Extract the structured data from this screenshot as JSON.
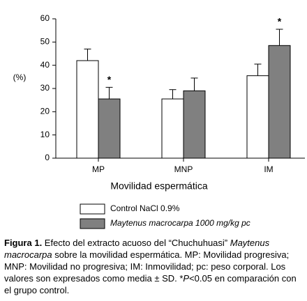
{
  "chart_data": {
    "type": "bar",
    "y_label": "(%)",
    "x_label": "Movilidad espermática",
    "categories": [
      "MP",
      "MNP",
      "IM"
    ],
    "series": [
      {
        "name": "Control NaCl 0.9%",
        "color": "#ffffff",
        "values": [
          42,
          25.5,
          35.5
        ],
        "errors": [
          5,
          4,
          5
        ]
      },
      {
        "name": "Maytenus macrocarpa 1000 mg/kg pc",
        "color": "#808080",
        "values": [
          25.5,
          29,
          48.5
        ],
        "errors": [
          5,
          5.5,
          7
        ],
        "significance": [
          "*",
          null,
          "*"
        ]
      }
    ],
    "ylim": [
      0,
      60
    ],
    "yticks": [
      0,
      10,
      20,
      30,
      40,
      50,
      60
    ],
    "caption": [
      {
        "text": "Figura 1.",
        "style": "bold"
      },
      {
        "text": " Efecto del extracto acuoso del “Chuchuhuasi” ",
        "style": "normal"
      },
      {
        "text": "Maytenus macrocarpa",
        "style": "italic"
      },
      {
        "text": " sobre la movilidad espermática. MP: Movilidad progresiva; MNP: Movilidad no progresiva; IM: Inmovilidad; pc: peso corporal. Los valores son expresados como media ± SD. *",
        "style": "normal"
      },
      {
        "text": "P",
        "style": "italic"
      },
      {
        "text": "<0.05 en comparación con el grupo control.",
        "style": "normal"
      }
    ]
  }
}
